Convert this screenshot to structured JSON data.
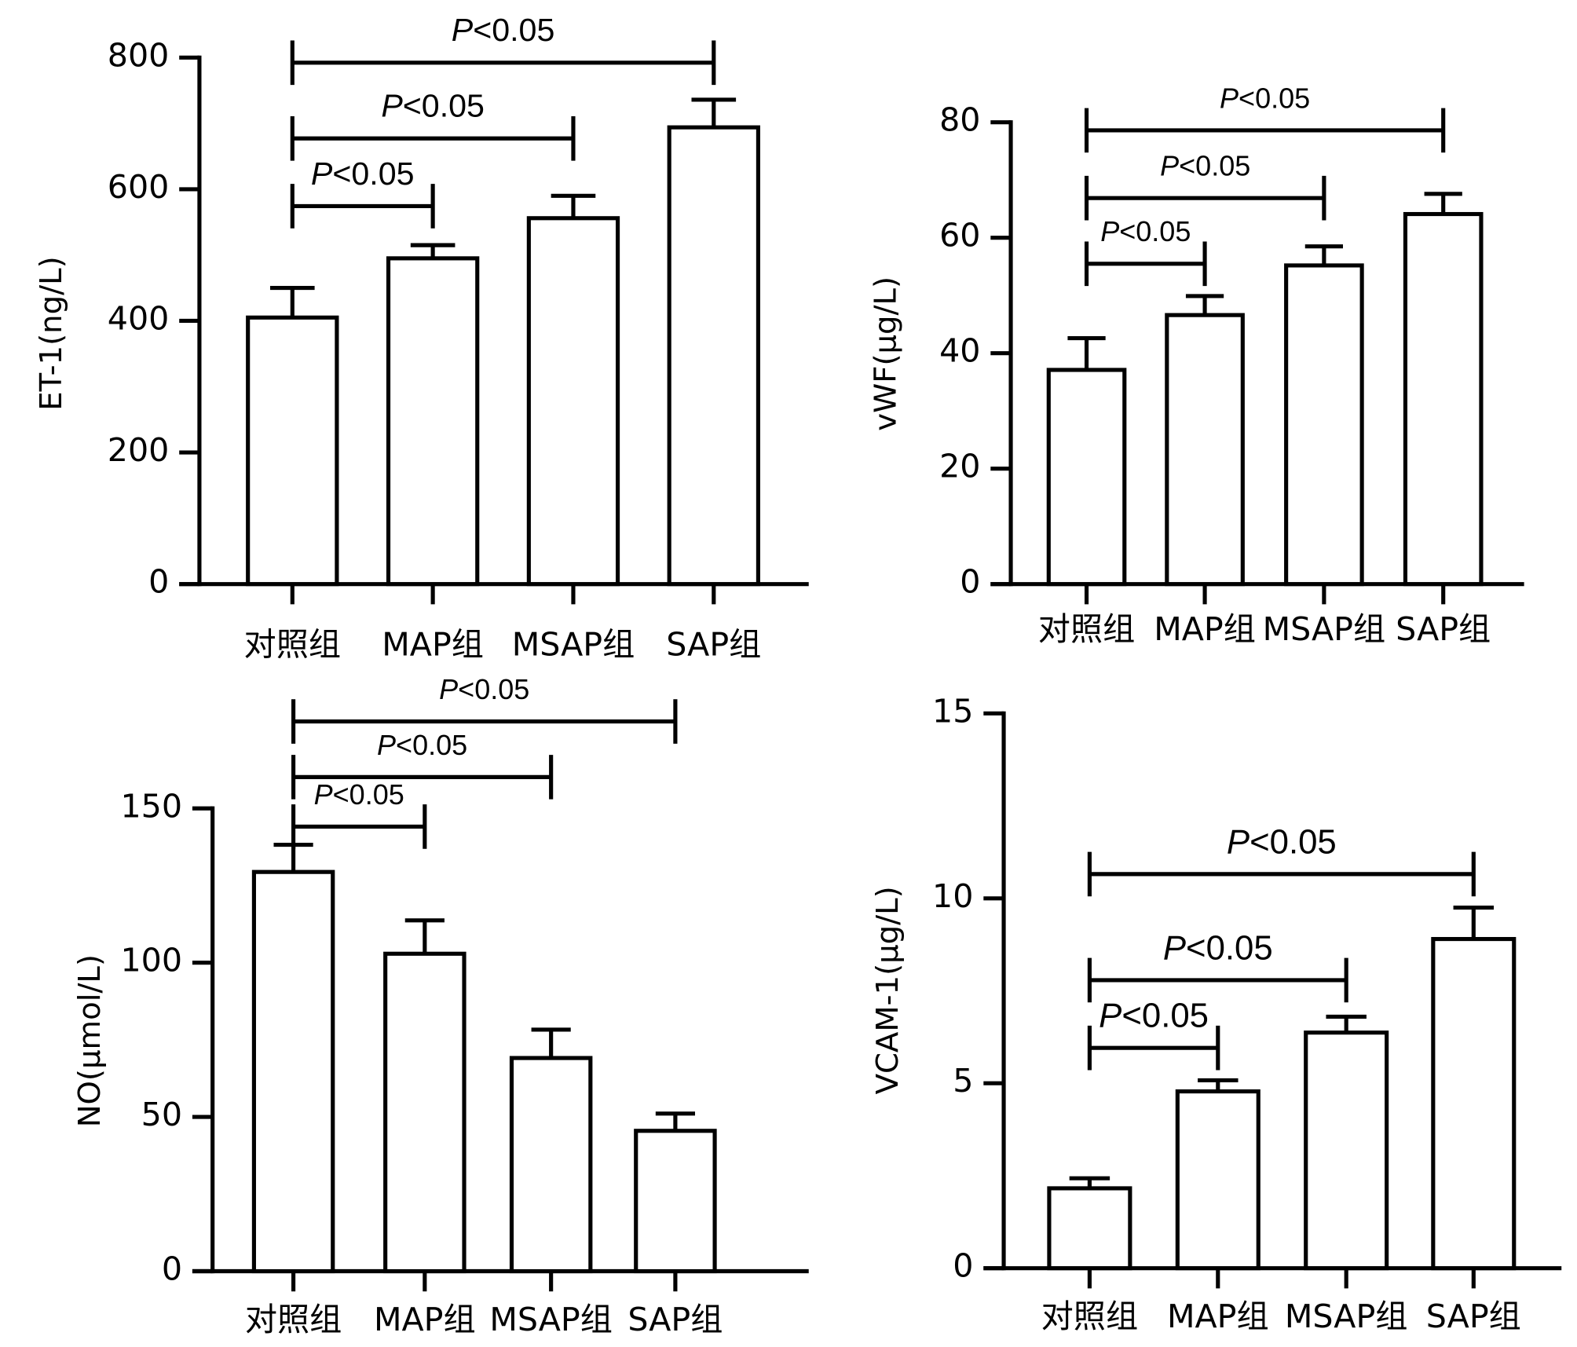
{
  "chart_data": [
    {
      "type": "bar",
      "ylabel": "ET-1(ng/L)",
      "categories": [
        "对照组",
        "MAP组",
        "MSAP组",
        "SAP组"
      ],
      "values": [
        405,
        495,
        556,
        694
      ],
      "errors": [
        45,
        20,
        34,
        42
      ],
      "color": "#ffffff",
      "edgecolor": "#000000",
      "ylim": [
        0,
        800
      ],
      "yticks": [
        0,
        200,
        400,
        600,
        800
      ],
      "significance": [
        {
          "from": "对照组",
          "to": "SAP组",
          "label": "P<0.05"
        },
        {
          "from": "对照组",
          "to": "MSAP组",
          "label": "P<0.05"
        },
        {
          "from": "对照组",
          "to": "MAP组",
          "label": "P<0.05"
        }
      ]
    },
    {
      "type": "bar",
      "ylabel": "vWF(μg/L)",
      "categories": [
        "对照组",
        "MAP组",
        "MSAP组",
        "SAP组"
      ],
      "values": [
        37.1,
        46.6,
        55.2,
        64.1
      ],
      "errors": [
        5.5,
        3.3,
        3.3,
        3.5
      ],
      "color": "#ffffff",
      "edgecolor": "#000000",
      "ylim": [
        0,
        80
      ],
      "yticks": [
        0,
        20,
        40,
        60,
        80
      ],
      "significance": [
        {
          "from": "对照组",
          "to": "SAP组",
          "label": "P<0.05"
        },
        {
          "from": "对照组",
          "to": "MSAP组",
          "label": "P<0.05"
        },
        {
          "from": "对照组",
          "to": "MAP组",
          "label": "P<0.05"
        }
      ]
    },
    {
      "type": "bar",
      "ylabel": "NO(μmol/L)",
      "categories": [
        "对照组",
        "MAP组",
        "MSAP组",
        "SAP组"
      ],
      "values": [
        129.4,
        102.9,
        69.1,
        45.5
      ],
      "errors": [
        8.8,
        10.8,
        9.2,
        5.6
      ],
      "color": "#ffffff",
      "edgecolor": "#000000",
      "ylim": [
        0,
        150
      ],
      "yticks": [
        0,
        50,
        100,
        150
      ],
      "significance": [
        {
          "from": "对照组",
          "to": "SAP组",
          "label": "P<0.05"
        },
        {
          "from": "对照组",
          "to": "MSAP组",
          "label": "P<0.05"
        },
        {
          "from": "对照组",
          "to": "MAP组",
          "label": "P<0.05"
        }
      ]
    },
    {
      "type": "bar",
      "ylabel": "VCAM-1(μg/L)",
      "categories": [
        "对照组",
        "MAP组",
        "MSAP组",
        "SAP组"
      ],
      "values": [
        2.16,
        4.78,
        6.37,
        8.9
      ],
      "errors": [
        0.27,
        0.3,
        0.43,
        0.85
      ],
      "color": "#ffffff",
      "edgecolor": "#000000",
      "ylim": [
        0,
        15
      ],
      "yticks": [
        0,
        5,
        10,
        15
      ],
      "significance": [
        {
          "from": "对照组",
          "to": "SAP组",
          "label": "P<0.05"
        },
        {
          "from": "对照组",
          "to": "MSAP组",
          "label": "P<0.05"
        },
        {
          "from": "对照组",
          "to": "MAP组",
          "label": "P<0.05"
        }
      ]
    }
  ]
}
